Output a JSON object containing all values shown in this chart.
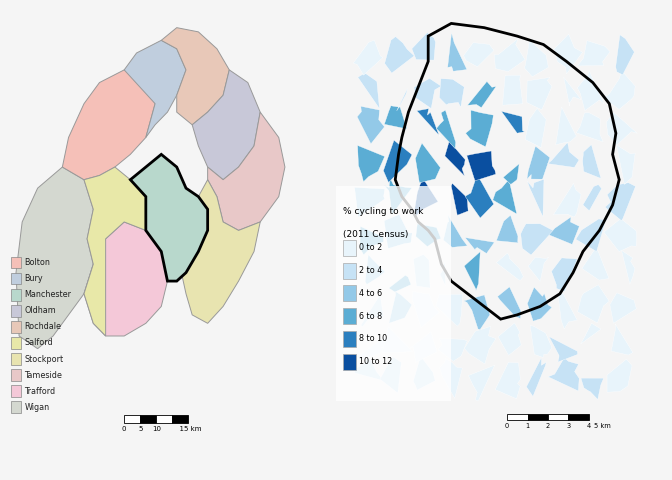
{
  "fig_width": 6.72,
  "fig_height": 4.8,
  "bg_color": "#f5f5f5",
  "left_bg": "#ffffff",
  "right_bg": "#ddeeff",
  "districts": [
    "Bolton",
    "Bury",
    "Manchester",
    "Oldham",
    "Rochdale",
    "Salford",
    "Stockport",
    "Tameside",
    "Trafford",
    "Wigan"
  ],
  "district_colors": {
    "Bolton": "#f5c0b8",
    "Bury": "#c0cede",
    "Manchester": "#b8d8cc",
    "Oldham": "#c8c8d8",
    "Rochdale": "#e8c8b8",
    "Salford": "#e8e8a8",
    "Stockport": "#e8e4b0",
    "Tameside": "#e8c8c8",
    "Trafford": "#f4c8d8",
    "Wigan": "#d4d8d0"
  },
  "cycling_legend_labels": [
    "0 to 2",
    "2 to 4",
    "4 to 6",
    "6 to 8",
    "8 to 10",
    "10 to 12"
  ],
  "cycling_colors": [
    "#e8f4fb",
    "#c6e2f5",
    "#93c9e8",
    "#5badd4",
    "#2b7fbf",
    "#0a4fa0"
  ],
  "cycling_title_line1": "% cycling to work",
  "cycling_title_line2": "(2011 Census)"
}
